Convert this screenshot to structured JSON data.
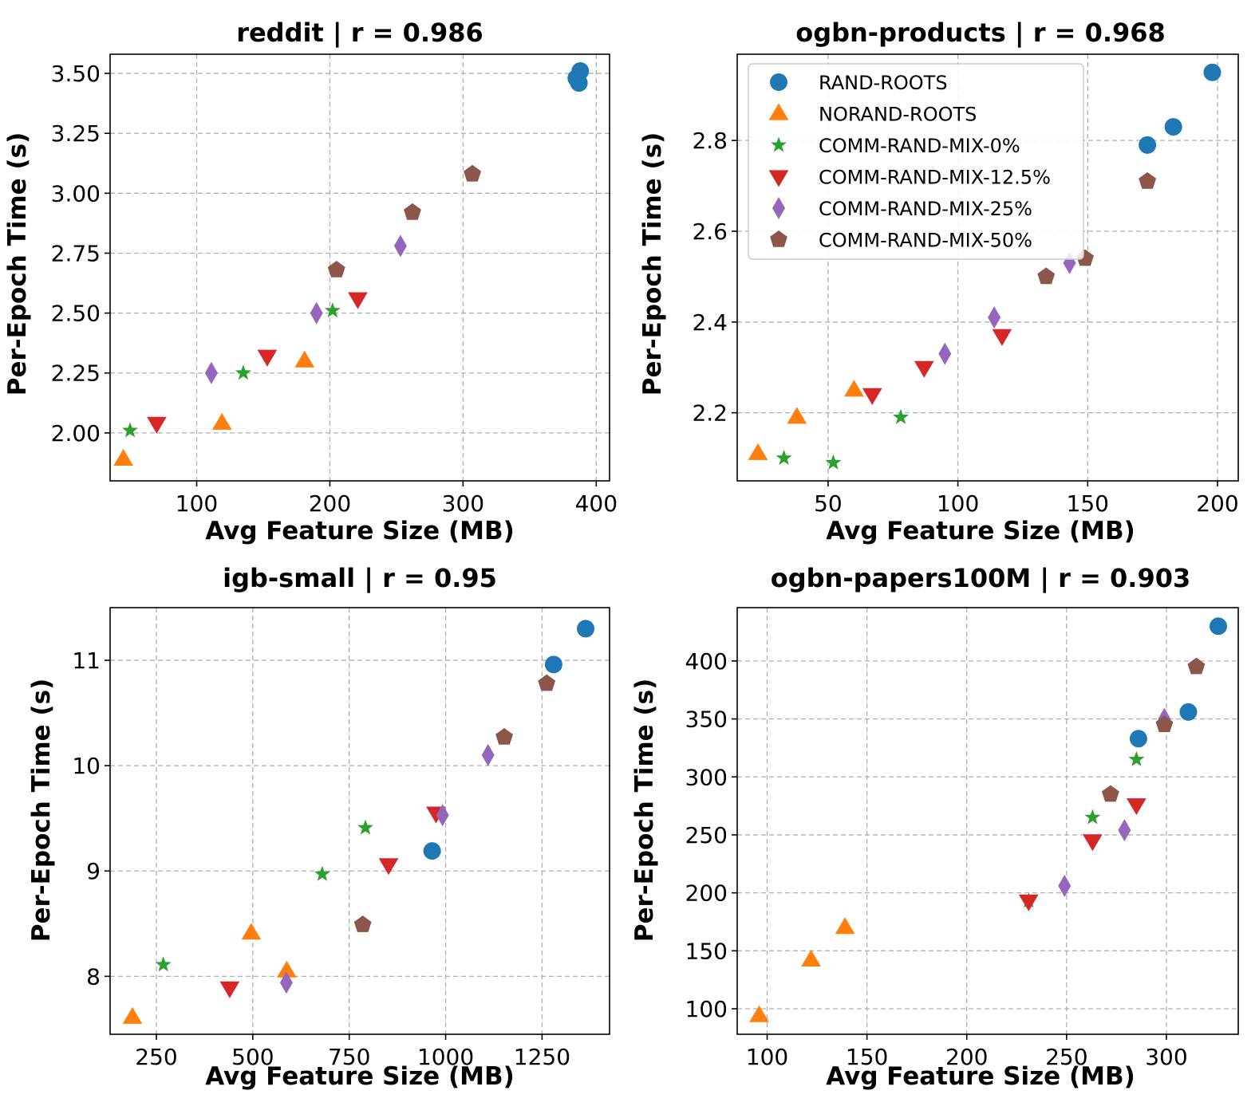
{
  "series_styles": [
    {
      "name": "RAND-ROOTS",
      "marker": "circle",
      "color": "#1f77b4"
    },
    {
      "name": "NORAND-ROOTS",
      "marker": "triangle-up",
      "color": "#ff7f0e"
    },
    {
      "name": "COMM-RAND-MIX-0%",
      "marker": "star",
      "color": "#2ca02c"
    },
    {
      "name": "COMM-RAND-MIX-12.5%",
      "marker": "triangle-down",
      "color": "#d62728"
    },
    {
      "name": "COMM-RAND-MIX-25%",
      "marker": "diamond",
      "color": "#9467bd"
    },
    {
      "name": "COMM-RAND-MIX-50%",
      "marker": "pentagon",
      "color": "#8c564b"
    }
  ],
  "chart_data": [
    {
      "type": "scatter",
      "title": "reddit | r = 0.986",
      "xlabel": "Avg Feature Size (MB)",
      "ylabel": "Per-Epoch Time (s)",
      "xlim": [
        35,
        410
      ],
      "ylim": [
        1.8,
        3.58
      ],
      "xticks": [
        {
          "v": 100,
          "label": "100"
        },
        {
          "v": 200,
          "label": "200"
        },
        {
          "v": 300,
          "label": "300"
        },
        {
          "v": 400,
          "label": "400"
        }
      ],
      "yticks": [
        {
          "v": 2.0,
          "label": "2.00"
        },
        {
          "v": 2.25,
          "label": "2.25"
        },
        {
          "v": 2.5,
          "label": "2.50"
        },
        {
          "v": 2.75,
          "label": "2.75"
        },
        {
          "v": 3.0,
          "label": "3.00"
        },
        {
          "v": 3.25,
          "label": "3.25"
        },
        {
          "v": 3.5,
          "label": "3.50"
        }
      ],
      "legend": false,
      "series": [
        {
          "name": "RAND-ROOTS",
          "points": [
            [
              385,
              3.48
            ],
            [
              387,
              3.46
            ],
            [
              388,
              3.51
            ]
          ]
        },
        {
          "name": "NORAND-ROOTS",
          "points": [
            [
              45,
              1.89
            ],
            [
              119,
              2.04
            ],
            [
              181,
              2.3
            ]
          ]
        },
        {
          "name": "COMM-RAND-MIX-0%",
          "points": [
            [
              50,
              2.01
            ],
            [
              135,
              2.25
            ],
            [
              202,
              2.51
            ]
          ]
        },
        {
          "name": "COMM-RAND-MIX-12.5%",
          "points": [
            [
              70,
              2.04
            ],
            [
              153,
              2.32
            ],
            [
              221,
              2.56
            ]
          ]
        },
        {
          "name": "COMM-RAND-MIX-25%",
          "points": [
            [
              111,
              2.25
            ],
            [
              190,
              2.5
            ],
            [
              253,
              2.78
            ]
          ]
        },
        {
          "name": "COMM-RAND-MIX-50%",
          "points": [
            [
              205,
              2.68
            ],
            [
              262,
              2.92
            ],
            [
              307,
              3.08
            ]
          ]
        }
      ]
    },
    {
      "type": "scatter",
      "title": "ogbn-products | r = 0.968",
      "xlabel": "Avg Feature Size (MB)",
      "ylabel": "Per-Epoch Time (s)",
      "xlim": [
        15,
        208
      ],
      "ylim": [
        2.05,
        2.99
      ],
      "xticks": [
        {
          "v": 50,
          "label": "50"
        },
        {
          "v": 100,
          "label": "100"
        },
        {
          "v": 150,
          "label": "150"
        },
        {
          "v": 200,
          "label": "200"
        }
      ],
      "yticks": [
        {
          "v": 2.2,
          "label": "2.2"
        },
        {
          "v": 2.4,
          "label": "2.4"
        },
        {
          "v": 2.6,
          "label": "2.6"
        },
        {
          "v": 2.8,
          "label": "2.8"
        }
      ],
      "legend": true,
      "series": [
        {
          "name": "RAND-ROOTS",
          "points": [
            [
              173,
              2.79
            ],
            [
              183,
              2.83
            ],
            [
              198,
              2.95
            ]
          ]
        },
        {
          "name": "NORAND-ROOTS",
          "points": [
            [
              23,
              2.11
            ],
            [
              38,
              2.19
            ],
            [
              60,
              2.25
            ]
          ]
        },
        {
          "name": "COMM-RAND-MIX-0%",
          "points": [
            [
              33,
              2.1
            ],
            [
              52,
              2.09
            ],
            [
              78,
              2.19
            ]
          ]
        },
        {
          "name": "COMM-RAND-MIX-12.5%",
          "points": [
            [
              67,
              2.24
            ],
            [
              87,
              2.3
            ],
            [
              117,
              2.37
            ]
          ]
        },
        {
          "name": "COMM-RAND-MIX-25%",
          "points": [
            [
              95,
              2.33
            ],
            [
              114,
              2.41
            ],
            [
              143,
              2.53
            ]
          ]
        },
        {
          "name": "COMM-RAND-MIX-50%",
          "points": [
            [
              134,
              2.5
            ],
            [
              149,
              2.54
            ],
            [
              173,
              2.71
            ]
          ]
        }
      ]
    },
    {
      "type": "scatter",
      "title": "igb-small | r = 0.95",
      "xlabel": "Avg Feature Size (MB)",
      "ylabel": "Per-Epoch Time (s)",
      "xlim": [
        130,
        1425
      ],
      "ylim": [
        7.45,
        11.5
      ],
      "xticks": [
        {
          "v": 250,
          "label": "250"
        },
        {
          "v": 500,
          "label": "500"
        },
        {
          "v": 750,
          "label": "750"
        },
        {
          "v": 1000,
          "label": "1000"
        },
        {
          "v": 1250,
          "label": "1250"
        }
      ],
      "yticks": [
        {
          "v": 8,
          "label": "8"
        },
        {
          "v": 9,
          "label": "9"
        },
        {
          "v": 10,
          "label": "10"
        },
        {
          "v": 11,
          "label": "11"
        }
      ],
      "legend": false,
      "series": [
        {
          "name": "RAND-ROOTS",
          "points": [
            [
              965,
              9.19
            ],
            [
              1280,
              10.96
            ],
            [
              1363,
              11.3
            ]
          ]
        },
        {
          "name": "NORAND-ROOTS",
          "points": [
            [
              188,
              7.61
            ],
            [
              496,
              8.41
            ],
            [
              588,
              8.05
            ]
          ]
        },
        {
          "name": "COMM-RAND-MIX-0%",
          "points": [
            [
              268,
              8.11
            ],
            [
              680,
              8.97
            ],
            [
              792,
              9.41
            ]
          ]
        },
        {
          "name": "COMM-RAND-MIX-12.5%",
          "points": [
            [
              440,
              7.89
            ],
            [
              852,
              9.06
            ],
            [
              975,
              9.55
            ]
          ]
        },
        {
          "name": "COMM-RAND-MIX-25%",
          "points": [
            [
              587,
              7.94
            ],
            [
              992,
              9.53
            ],
            [
              1110,
              10.1
            ]
          ]
        },
        {
          "name": "COMM-RAND-MIX-50%",
          "points": [
            [
              785,
              8.49
            ],
            [
              1152,
              10.27
            ],
            [
              1262,
              10.78
            ]
          ]
        }
      ]
    },
    {
      "type": "scatter",
      "title": "ogbn-papers100M | r = 0.903",
      "xlabel": "Avg Feature Size (MB)",
      "ylabel": "Per-Epoch Time (s)",
      "xlim": [
        85,
        336
      ],
      "ylim": [
        78,
        446
      ],
      "xticks": [
        {
          "v": 100,
          "label": "100"
        },
        {
          "v": 150,
          "label": "150"
        },
        {
          "v": 200,
          "label": "200"
        },
        {
          "v": 250,
          "label": "250"
        },
        {
          "v": 300,
          "label": "300"
        }
      ],
      "yticks": [
        {
          "v": 100,
          "label": "100"
        },
        {
          "v": 150,
          "label": "150"
        },
        {
          "v": 200,
          "label": "200"
        },
        {
          "v": 250,
          "label": "250"
        },
        {
          "v": 300,
          "label": "300"
        },
        {
          "v": 350,
          "label": "350"
        },
        {
          "v": 400,
          "label": "400"
        }
      ],
      "legend": false,
      "series": [
        {
          "name": "RAND-ROOTS",
          "points": [
            [
              286,
              333
            ],
            [
              311,
              356
            ],
            [
              326,
              430
            ]
          ]
        },
        {
          "name": "NORAND-ROOTS",
          "points": [
            [
              96,
              94
            ],
            [
              122,
              142
            ],
            [
              139,
              170
            ]
          ]
        },
        {
          "name": "COMM-RAND-MIX-0%",
          "points": [
            [
              231,
              193
            ],
            [
              263,
              265
            ],
            [
              285,
              315
            ]
          ]
        },
        {
          "name": "COMM-RAND-MIX-12.5%",
          "points": [
            [
              231,
              193
            ],
            [
              263,
              245
            ],
            [
              285,
              276
            ]
          ]
        },
        {
          "name": "COMM-RAND-MIX-25%",
          "points": [
            [
              249,
              206
            ],
            [
              279,
              254
            ],
            [
              299,
              350
            ]
          ]
        },
        {
          "name": "COMM-RAND-MIX-50%",
          "points": [
            [
              272,
              285
            ],
            [
              299,
              345
            ],
            [
              315,
              395
            ]
          ]
        }
      ]
    }
  ]
}
